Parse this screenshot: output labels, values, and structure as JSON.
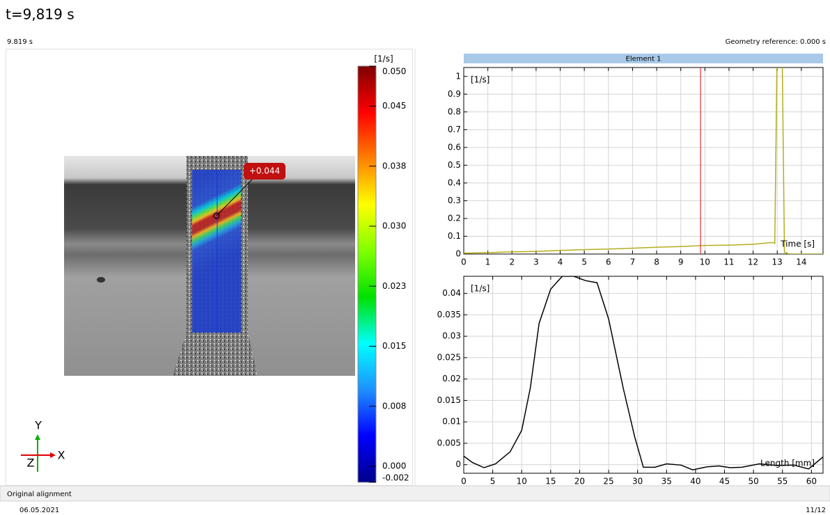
{
  "header": {
    "title": "t=9,819 s",
    "time_label": "9.819 s",
    "geometry_reference": "Geometry reference: 0.000 s",
    "element": "Element 1"
  },
  "view": {
    "probe_label": "+0.044",
    "axis_x": "X",
    "axis_y": "Y",
    "axis_z": "Z"
  },
  "colorbar": {
    "unit": "[1/s]",
    "lim": [
      -0.002,
      0.05
    ],
    "colors": [
      "#00008b",
      "#0000ff",
      "#1e90ff",
      "#00ffff",
      "#00e000",
      "#80ff00",
      "#ffff00",
      "#ff8000",
      "#ff0000",
      "#800000"
    ],
    "ticks": [
      {
        "value": 0.05,
        "label": "0.050"
      },
      {
        "value": 0.045,
        "label": "0.045"
      },
      {
        "value": 0.0375,
        "label": "0.038"
      },
      {
        "value": 0.03,
        "label": "0.030"
      },
      {
        "value": 0.0225,
        "label": "0.023"
      },
      {
        "value": 0.015,
        "label": "0.015"
      },
      {
        "value": 0.0075,
        "label": "0.008"
      },
      {
        "value": 0,
        "label": "0.000"
      },
      {
        "value": -0.002,
        "label": "-0.002"
      }
    ]
  },
  "chart_data": [
    {
      "type": "line",
      "ylabel": "[1/s]",
      "xlabel": "Time [s]",
      "color": "#b5ad1c",
      "cursor_x": 9.819,
      "cursor_color": "#e03030",
      "grid": true,
      "x": [
        0,
        1,
        2,
        3,
        4,
        5,
        6,
        7,
        8,
        9,
        10,
        11,
        12,
        12.8,
        12.9,
        13.0,
        13.2,
        13.3,
        13.5,
        14.9
      ],
      "values": [
        0.005,
        0.008,
        0.012,
        0.015,
        0.02,
        0.025,
        0.028,
        0.033,
        0.038,
        0.042,
        0.048,
        0.05,
        0.055,
        0.065,
        0.06,
        1.2,
        1.2,
        0.01,
        0,
        0
      ],
      "xlim": [
        0,
        14.9
      ],
      "ylim": [
        0,
        1.05
      ],
      "xticks": [
        0,
        1,
        2,
        3,
        4,
        5,
        6,
        7,
        8,
        9,
        10,
        11,
        12,
        13,
        14
      ],
      "yticks": [
        0,
        0.1,
        0.2,
        0.3,
        0.4,
        0.5,
        0.6,
        0.7,
        0.8,
        0.9,
        1
      ]
    },
    {
      "type": "line",
      "ylabel": "[1/s]",
      "xlabel": "Length [mm]",
      "color": "#000000",
      "grid": true,
      "x": [
        0,
        1.5,
        3.5,
        5.5,
        8,
        10,
        11.5,
        13,
        15,
        17,
        19,
        21,
        23,
        25,
        27.5,
        29.5,
        31,
        33,
        35,
        37.5,
        39.5,
        42,
        44,
        46,
        48,
        51,
        54,
        57,
        59.5,
        62
      ],
      "values": [
        0.002,
        0.0005,
        -0.0007,
        0.0002,
        0.003,
        0.008,
        0.018,
        0.033,
        0.041,
        0.044,
        0.044,
        0.043,
        0.0425,
        0.034,
        0.018,
        0.0065,
        -0.0006,
        -0.0006,
        0.0002,
        -0.0001,
        -0.0012,
        -0.0005,
        -0.0003,
        -0.0007,
        -0.0006,
        0.0002,
        -0.0002,
        -0.0001,
        -0.001,
        0.0018
      ],
      "xlim": [
        0,
        62
      ],
      "ylim": [
        -0.002,
        0.044
      ],
      "xticks": [
        0,
        5,
        10,
        15,
        20,
        25,
        30,
        35,
        40,
        45,
        50,
        55,
        60
      ],
      "yticks": [
        0,
        0.005,
        0.01,
        0.015,
        0.02,
        0.025,
        0.03,
        0.035,
        0.04
      ]
    }
  ],
  "footer": {
    "status": "Original alignment",
    "date": "06.05.2021",
    "page": "11/12"
  }
}
